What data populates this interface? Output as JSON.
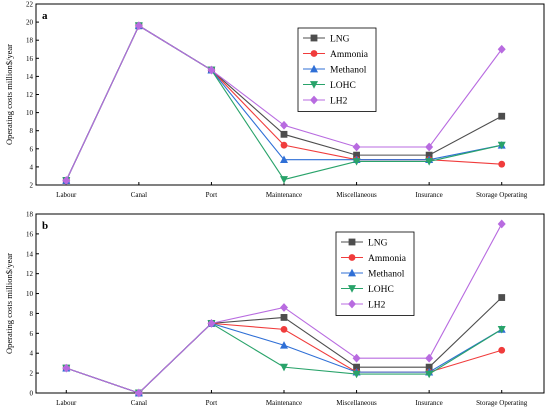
{
  "chart_data": [
    {
      "type": "line",
      "panel_label": "a",
      "categories": [
        "Labour",
        "Canal",
        "Port",
        "Maintenance",
        "Miscellaneous",
        "Insurance",
        "Storage Operating"
      ],
      "ylabel": "Operating costs million$/year",
      "ylim": [
        2,
        22
      ],
      "yticks": [
        2,
        4,
        6,
        8,
        10,
        12,
        14,
        16,
        18,
        20,
        22
      ],
      "legend_position": "top-right",
      "grid": false,
      "series": [
        {
          "name": "LNG",
          "color": "#4d4d4d",
          "marker": "square",
          "values": [
            2.5,
            19.6,
            14.7,
            7.6,
            5.3,
            5.3,
            9.6
          ]
        },
        {
          "name": "Ammonia",
          "color": "#f03c3c",
          "marker": "circle",
          "values": [
            2.5,
            19.6,
            14.7,
            6.4,
            4.8,
            4.8,
            4.3
          ]
        },
        {
          "name": "Methanol",
          "color": "#2f6fd6",
          "marker": "triangle-up",
          "values": [
            2.5,
            19.6,
            14.7,
            4.8,
            4.8,
            4.8,
            6.4
          ]
        },
        {
          "name": "LOHC",
          "color": "#29a36a",
          "marker": "triangle-down",
          "values": [
            2.5,
            19.6,
            14.7,
            2.6,
            4.6,
            4.6,
            6.4
          ]
        },
        {
          "name": "LH2",
          "color": "#b86be0",
          "marker": "diamond",
          "values": [
            2.5,
            19.6,
            14.7,
            8.6,
            6.2,
            6.2,
            17.0
          ]
        }
      ]
    },
    {
      "type": "line",
      "panel_label": "b",
      "categories": [
        "Labour",
        "Canal",
        "Port",
        "Maintenance",
        "Miscellaneous",
        "Insurance",
        "Storage Operating"
      ],
      "ylabel": "Operating costs million$/year",
      "ylim": [
        0,
        18
      ],
      "yticks": [
        0,
        2,
        4,
        6,
        8,
        10,
        12,
        14,
        16,
        18
      ],
      "legend_position": "top-right",
      "grid": false,
      "series": [
        {
          "name": "LNG",
          "color": "#4d4d4d",
          "marker": "square",
          "values": [
            2.5,
            0,
            7.0,
            7.6,
            2.6,
            2.6,
            9.6
          ]
        },
        {
          "name": "Ammonia",
          "color": "#f03c3c",
          "marker": "circle",
          "values": [
            2.5,
            0,
            7.0,
            6.4,
            2.1,
            2.1,
            4.3
          ]
        },
        {
          "name": "Methanol",
          "color": "#2f6fd6",
          "marker": "triangle-up",
          "values": [
            2.5,
            0,
            7.0,
            4.8,
            2.1,
            2.1,
            6.4
          ]
        },
        {
          "name": "LOHC",
          "color": "#29a36a",
          "marker": "triangle-down",
          "values": [
            2.5,
            0,
            7.0,
            2.6,
            1.9,
            1.9,
            6.4
          ]
        },
        {
          "name": "LH2",
          "color": "#b86be0",
          "marker": "diamond",
          "values": [
            2.5,
            0,
            7.0,
            8.6,
            3.5,
            3.5,
            17.0
          ]
        }
      ]
    }
  ]
}
